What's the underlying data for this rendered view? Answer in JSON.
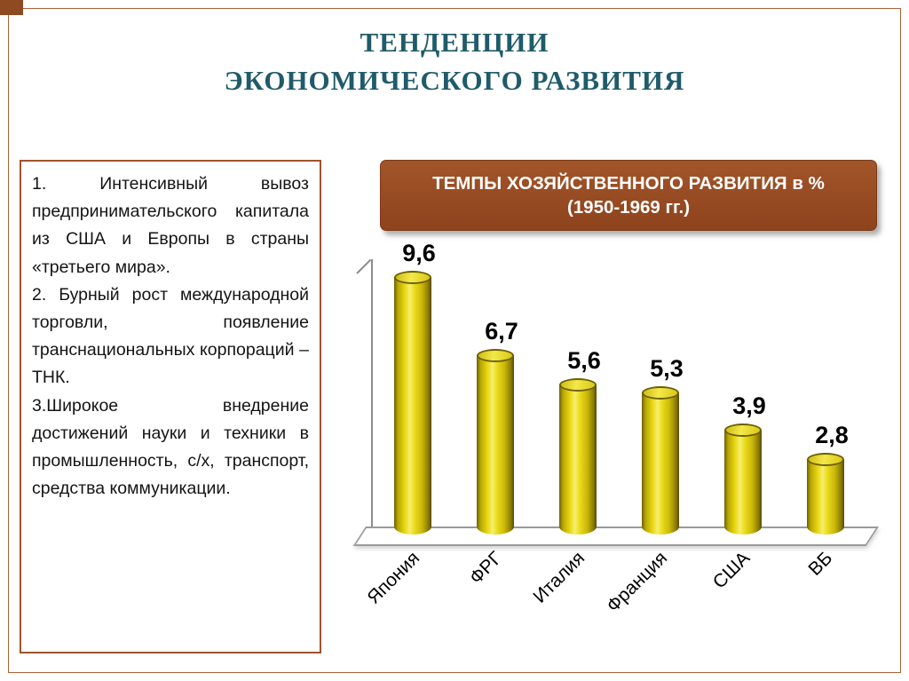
{
  "slide": {
    "title_line1": "ТЕНДЕНЦИИ",
    "title_line2": "ЭКОНОМИЧЕСКОГО РАЗВИТИЯ",
    "accent_color": "#a0522d",
    "title_color": "#1f5b6b"
  },
  "left_panel": {
    "items": [
      "1.  Интенсивный вывоз предпринимательского капитала из США и Европы в страны «третьего мира».",
      "2.  Бурный рост международной торговли, появление транснациональных корпораций – ТНК.",
      "3.Широкое внедрение достижений науки и техники в промышленность, с/х, транспорт, средства коммуникации."
    ]
  },
  "chart_header": {
    "line1": "ТЕМПЫ ХОЗЯЙСТВЕННОГО РАЗВИТИЯ  в %",
    "line2": "(1950-1969 гг.)"
  },
  "chart_data": {
    "type": "bar",
    "style": "3d-cylinder",
    "title": "ТЕМПЫ ХОЗЯЙСТВЕННОГО РАЗВИТИЯ в % (1950-1969 гг.)",
    "categories": [
      "Япония",
      "ФРГ",
      "Италия",
      "Франция",
      "США",
      "ВБ"
    ],
    "values": [
      9.6,
      6.7,
      5.6,
      5.3,
      3.9,
      2.8
    ],
    "value_labels": [
      "9,6",
      "6,7",
      "5,6",
      "5,3",
      "3,9",
      "2,8"
    ],
    "xlabel": "",
    "ylabel": "",
    "ylim": [
      0,
      10
    ],
    "bar_color": "#e3cf17",
    "grid": false,
    "legend": false
  }
}
